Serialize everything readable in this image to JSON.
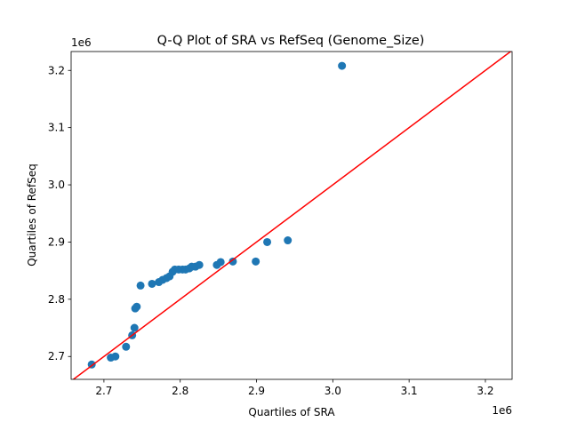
{
  "chart_data": {
    "type": "scatter",
    "title": "Q-Q Plot of SRA vs RefSeq (Genome_Size)",
    "xlabel": "Quartiles of SRA",
    "ylabel": "Quartiles of RefSeq",
    "x_offset_label": "1e6",
    "y_offset_label": "1e6",
    "xlim": [
      2.657,
      3.235
    ],
    "ylim": [
      2.66,
      3.233
    ],
    "xticks": [
      2.7,
      2.8,
      2.9,
      3.0,
      3.1,
      3.2
    ],
    "yticks": [
      2.7,
      2.8,
      2.9,
      3.0,
      3.1,
      3.2
    ],
    "xtick_labels": [
      "2.7",
      "2.8",
      "2.9",
      "3.0",
      "3.1",
      "3.2"
    ],
    "ytick_labels": [
      "2.7",
      "2.8",
      "2.9",
      "3.0",
      "3.1",
      "3.2"
    ],
    "grid": false,
    "point_color": "#1f77b4",
    "line_color": "#ff0000",
    "reference_line": "y = x",
    "points": [
      [
        2.684,
        2.686
      ],
      [
        2.709,
        2.698
      ],
      [
        2.715,
        2.7
      ],
      [
        2.729,
        2.717
      ],
      [
        2.737,
        2.737
      ],
      [
        2.74,
        2.75
      ],
      [
        2.741,
        2.784
      ],
      [
        2.743,
        2.787
      ],
      [
        2.748,
        2.824
      ],
      [
        2.763,
        2.827
      ],
      [
        2.772,
        2.83
      ],
      [
        2.777,
        2.834
      ],
      [
        2.782,
        2.837
      ],
      [
        2.786,
        2.84
      ],
      [
        2.79,
        2.848
      ],
      [
        2.793,
        2.852
      ],
      [
        2.798,
        2.852
      ],
      [
        2.803,
        2.852
      ],
      [
        2.807,
        2.852
      ],
      [
        2.812,
        2.854
      ],
      [
        2.815,
        2.857
      ],
      [
        2.82,
        2.857
      ],
      [
        2.825,
        2.86
      ],
      [
        2.848,
        2.86
      ],
      [
        2.853,
        2.865
      ],
      [
        2.869,
        2.866
      ],
      [
        2.899,
        2.866
      ],
      [
        2.914,
        2.9
      ],
      [
        2.941,
        2.903
      ],
      [
        3.012,
        3.208
      ]
    ]
  }
}
